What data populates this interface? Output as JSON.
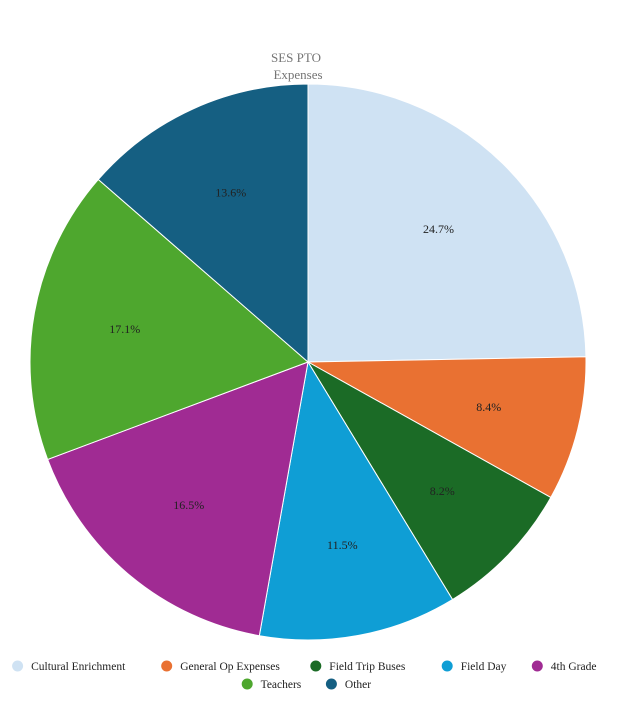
{
  "chart_data": {
    "type": "pie",
    "title": "SES PTO",
    "subtitle": "Expenses",
    "legend_position": "bottom",
    "slices": [
      {
        "name": "Cultural Enrichment",
        "value": 24.7,
        "label": "24.7%",
        "color": "#cfe2f3"
      },
      {
        "name": "General Op Expenses",
        "value": 8.4,
        "label": "8.4%",
        "color": "#e97132"
      },
      {
        "name": "Field Trip Buses",
        "value": 8.2,
        "label": "8.2%",
        "color": "#1b6b26"
      },
      {
        "name": "Field Day",
        "value": 11.5,
        "label": "11.5%",
        "color": "#0f9ed5"
      },
      {
        "name": "4th Grade",
        "value": 16.5,
        "label": "16.5%",
        "color": "#a02b93"
      },
      {
        "name": "Teachers",
        "value": 17.1,
        "label": "17.1%",
        "color": "#4ea72e"
      },
      {
        "name": "Other",
        "value": 13.6,
        "label": "13.6%",
        "color": "#155f82"
      }
    ]
  }
}
